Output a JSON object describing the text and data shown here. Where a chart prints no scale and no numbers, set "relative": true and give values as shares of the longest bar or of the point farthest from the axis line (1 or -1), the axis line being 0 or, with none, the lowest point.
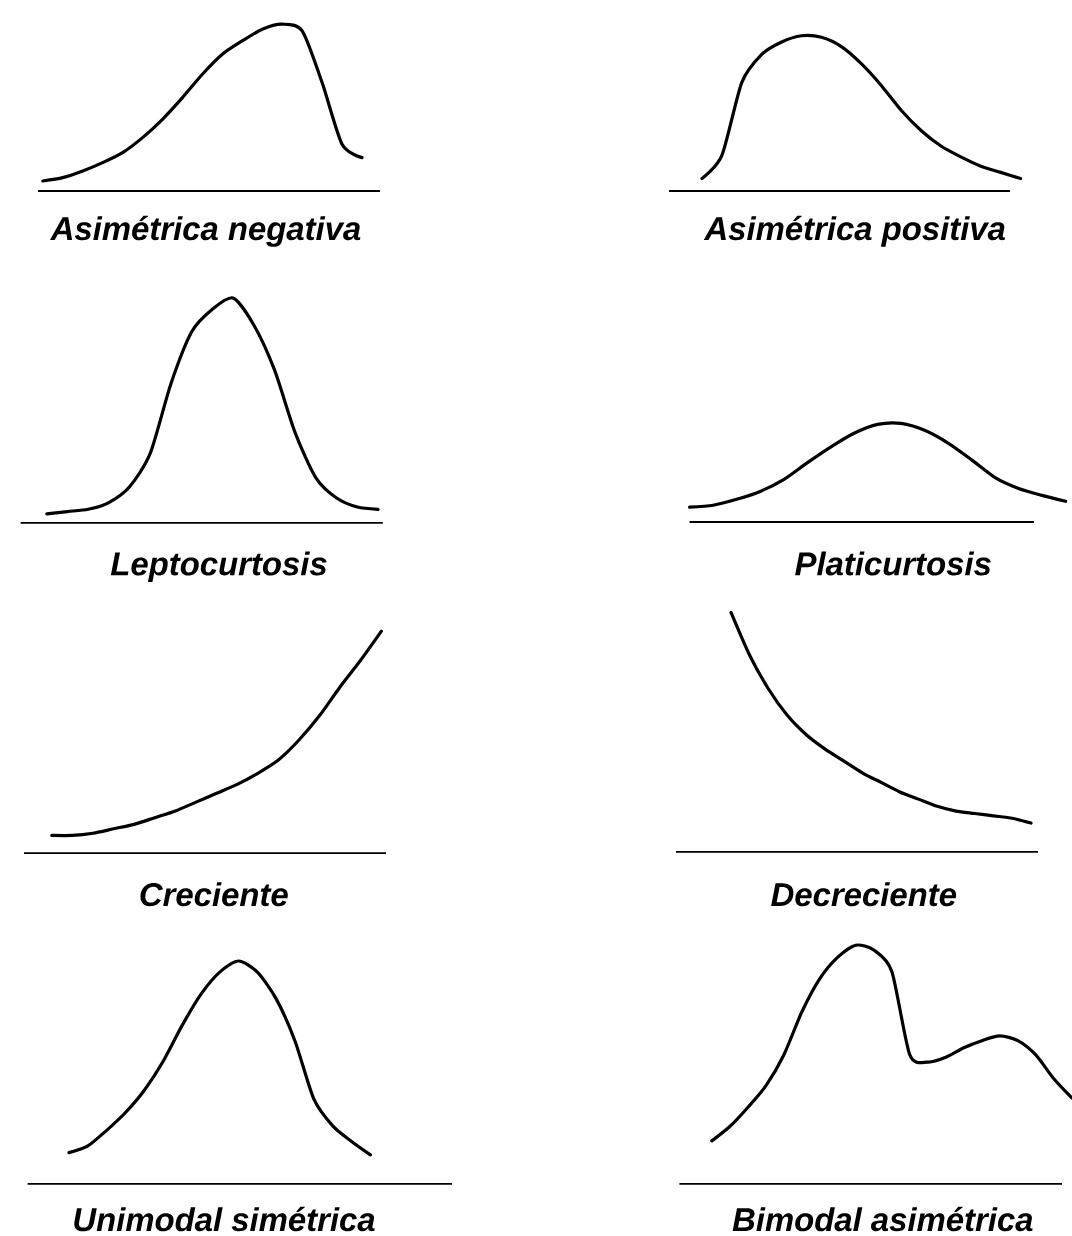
{
  "chart_data": [
    {
      "type": "line",
      "relative": true,
      "xlabel": "Asimétrica negativa",
      "color": "#000000",
      "categories": [
        null,
        null,
        null,
        null,
        null,
        null,
        null,
        null,
        null,
        null,
        null,
        null,
        null,
        null,
        null,
        null,
        null
      ],
      "values": [
        0.06,
        0.08,
        0.12,
        0.17,
        0.23,
        0.32,
        0.43,
        0.56,
        0.7,
        0.82,
        0.9,
        0.97,
        1,
        0.96,
        0.65,
        0.28,
        0.2
      ]
    },
    {
      "type": "line",
      "relative": true,
      "xlabel": "Asimétrica positiva",
      "color": "#000000",
      "categories": [
        null,
        null,
        null,
        null,
        null,
        null,
        null,
        null,
        null,
        null,
        null,
        null,
        null,
        null,
        null,
        null,
        null
      ],
      "values": [
        0.08,
        0.23,
        0.7,
        0.88,
        0.96,
        1,
        0.99,
        0.93,
        0.82,
        0.68,
        0.52,
        0.39,
        0.29,
        0.22,
        0.16,
        0.12,
        0.08
      ]
    },
    {
      "type": "line",
      "relative": true,
      "xlabel": "Leptocurtosis",
      "color": "#000000",
      "categories": [
        null,
        null,
        null,
        null,
        null,
        null,
        null,
        null,
        null,
        null,
        null,
        null,
        null,
        null,
        null,
        null,
        null
      ],
      "values": [
        0.04,
        0.05,
        0.06,
        0.09,
        0.16,
        0.31,
        0.62,
        0.85,
        0.95,
        1,
        0.88,
        0.68,
        0.4,
        0.2,
        0.11,
        0.07,
        0.06
      ]
    },
    {
      "type": "line",
      "relative": true,
      "xlabel": "Platicurtosis",
      "color": "#000000",
      "categories": [
        null,
        null,
        null,
        null,
        null,
        null,
        null,
        null,
        null,
        null,
        null,
        null,
        null,
        null,
        null,
        null,
        null
      ],
      "values": [
        0.15,
        0.17,
        0.23,
        0.31,
        0.43,
        0.6,
        0.76,
        0.9,
        0.99,
        1,
        0.93,
        0.8,
        0.63,
        0.45,
        0.34,
        0.27,
        0.21
      ]
    },
    {
      "type": "line",
      "relative": true,
      "xlabel": "Creciente",
      "color": "#000000",
      "categories": [
        null,
        null,
        null,
        null,
        null,
        null,
        null,
        null,
        null,
        null,
        null,
        null,
        null,
        null,
        null,
        null,
        null
      ],
      "values": [
        0.08,
        0.08,
        0.09,
        0.11,
        0.13,
        0.16,
        0.19,
        0.23,
        0.27,
        0.31,
        0.36,
        0.42,
        0.51,
        0.62,
        0.75,
        0.87,
        1
      ]
    },
    {
      "type": "line",
      "relative": true,
      "xlabel": "Decreciente",
      "color": "#000000",
      "categories": [
        null,
        null,
        null,
        null,
        null,
        null,
        null,
        null,
        null,
        null,
        null,
        null,
        null,
        null,
        null,
        null,
        null
      ],
      "values": [
        1,
        0.82,
        0.68,
        0.57,
        0.49,
        0.43,
        0.38,
        0.33,
        0.29,
        0.25,
        0.22,
        0.19,
        0.17,
        0.16,
        0.15,
        0.14,
        0.12
      ]
    },
    {
      "type": "line",
      "relative": true,
      "xlabel": "Unimodal simétrica",
      "color": "#000000",
      "categories": [
        null,
        null,
        null,
        null,
        null,
        null,
        null,
        null,
        null,
        null,
        null,
        null,
        null,
        null,
        null,
        null,
        null
      ],
      "values": [
        0.14,
        0.17,
        0.24,
        0.32,
        0.42,
        0.55,
        0.71,
        0.85,
        0.95,
        1,
        0.95,
        0.83,
        0.64,
        0.38,
        0.26,
        0.19,
        0.13
      ]
    },
    {
      "type": "line",
      "relative": true,
      "xlabel": "Bimodal asimétrica",
      "color": "#000000",
      "categories": [
        null,
        null,
        null,
        null,
        null,
        null,
        null,
        null,
        null,
        null,
        null,
        null,
        null,
        null,
        null,
        null,
        null,
        null,
        null,
        null,
        null
      ],
      "values": [
        0.18,
        0.24,
        0.32,
        0.41,
        0.54,
        0.72,
        0.86,
        0.95,
        1,
        0.98,
        0.89,
        0.54,
        0.51,
        0.53,
        0.57,
        0.6,
        0.62,
        0.6,
        0.54,
        0.44,
        0.36
      ]
    }
  ]
}
